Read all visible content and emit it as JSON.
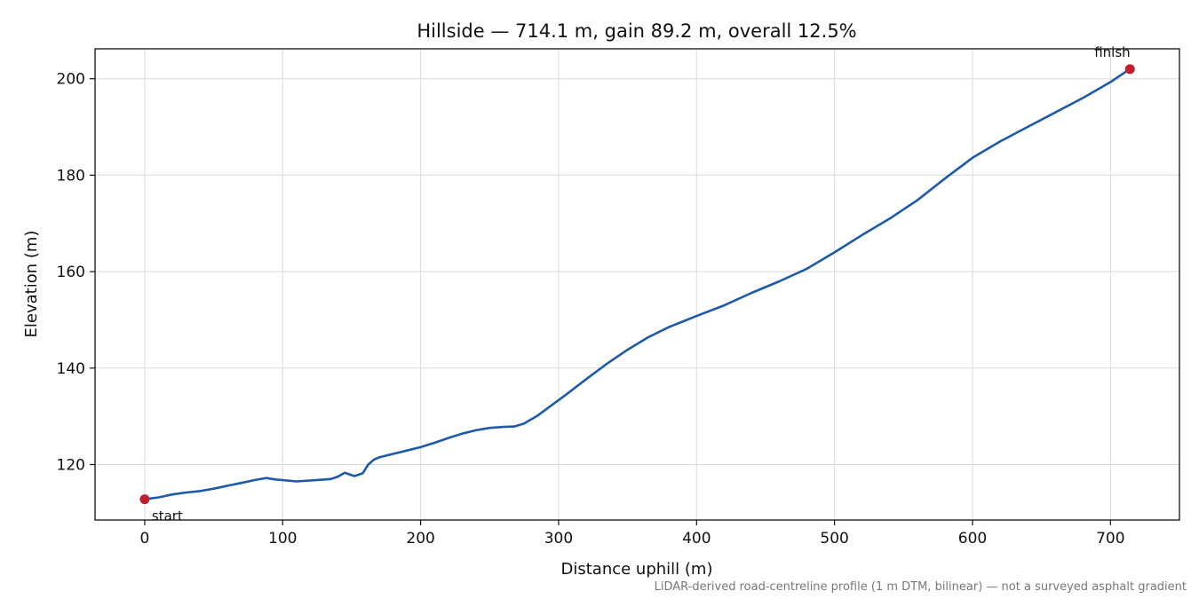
{
  "chart_data": {
    "type": "line",
    "title": "Hillside — 714.1 m, gain 89.2 m, overall 12.5%",
    "xlabel": "Distance uphill (m)",
    "ylabel": "Elevation (m)",
    "xlim": [
      -36,
      750
    ],
    "ylim": [
      108.5,
      206.2
    ],
    "xticks": [
      0,
      100,
      200,
      300,
      400,
      500,
      600,
      700
    ],
    "yticks": [
      120,
      140,
      160,
      180,
      200
    ],
    "grid": true,
    "note": "LiDAR-derived road-centreline profile (1 m DTM, bilinear) — not a surveyed asphalt gradient",
    "series": [
      {
        "color": "#1f5aa8",
        "x": [
          0,
          10,
          20,
          30,
          40,
          50,
          60,
          70,
          80,
          88,
          95,
          110,
          125,
          135,
          140,
          145,
          148,
          152,
          158,
          162,
          166,
          170,
          180,
          190,
          200,
          210,
          220,
          230,
          240,
          250,
          260,
          268,
          275,
          285,
          295,
          305,
          320,
          335,
          350,
          365,
          380,
          400,
          420,
          440,
          460,
          480,
          500,
          520,
          540,
          560,
          580,
          600,
          620,
          640,
          660,
          680,
          700,
          714.1
        ],
        "y": [
          112.8,
          113.2,
          113.8,
          114.2,
          114.5,
          115.0,
          115.6,
          116.2,
          116.8,
          117.2,
          116.9,
          116.5,
          116.8,
          117.0,
          117.5,
          118.3,
          118.0,
          117.6,
          118.2,
          120.0,
          121.0,
          121.5,
          122.2,
          122.9,
          123.6,
          124.5,
          125.5,
          126.4,
          127.1,
          127.6,
          127.8,
          127.9,
          128.5,
          130.2,
          132.3,
          134.4,
          137.7,
          140.9,
          143.8,
          146.4,
          148.5,
          150.8,
          153.0,
          155.6,
          158.0,
          160.6,
          164.0,
          167.6,
          171.0,
          174.8,
          179.3,
          183.6,
          187.0,
          190.0,
          193.0,
          196.0,
          199.3,
          202.0
        ]
      }
    ],
    "markers": [
      {
        "label": "start",
        "x": 0,
        "y": 112.8,
        "color": "#c0202e"
      },
      {
        "label": "finish",
        "x": 714.1,
        "y": 202.0,
        "color": "#c0202e"
      }
    ]
  }
}
